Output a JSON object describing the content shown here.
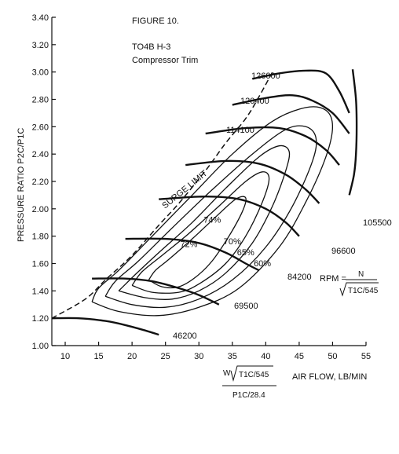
{
  "chart_data": {
    "type": "line",
    "title": "FIGURE 10.",
    "subtitle": [
      "TO4B H-3",
      "Compressor Trim"
    ],
    "ylabel": "PRESSURE RATIO  P2C/P1C",
    "xlabel": "AIR FLOW, LB/MIN",
    "xlabel_formula": {
      "top": "W",
      "sqrt": "T1C/545",
      "bottom": "P1C/28.4"
    },
    "xlim": [
      8,
      55
    ],
    "ylim": [
      1.0,
      3.4
    ],
    "xticks": [
      "10",
      "15",
      "20",
      "25",
      "30",
      "35",
      "40",
      "45",
      "50",
      "55"
    ],
    "yticks": [
      "1.00",
      "1.20",
      "1.40",
      "1.60",
      "1.80",
      "2.00",
      "2.20",
      "2.40",
      "2.60",
      "2.80",
      "3.00",
      "3.20",
      "3.40"
    ],
    "rpm_formula": {
      "prefix": "RPM =",
      "num": "N",
      "den": "T1C/545"
    },
    "surge_limit": {
      "label": "SURGE LIMIT",
      "points": [
        [
          8,
          1.2
        ],
        [
          13,
          1.34
        ],
        [
          16,
          1.48
        ],
        [
          20,
          1.66
        ],
        [
          24,
          1.88
        ],
        [
          27,
          2.04
        ],
        [
          31,
          2.28
        ],
        [
          34,
          2.48
        ],
        [
          37,
          2.66
        ],
        [
          39,
          2.82
        ],
        [
          41,
          3.0
        ]
      ]
    },
    "speed_lines": [
      {
        "label": "46200",
        "points": [
          [
            8,
            1.2
          ],
          [
            12,
            1.2
          ],
          [
            16,
            1.18
          ],
          [
            19,
            1.15
          ],
          [
            22,
            1.11
          ],
          [
            24,
            1.08
          ]
        ]
      },
      {
        "label": "69500",
        "points": [
          [
            14,
            1.49
          ],
          [
            19,
            1.49
          ],
          [
            23,
            1.47
          ],
          [
            27,
            1.42
          ],
          [
            30,
            1.37
          ],
          [
            33,
            1.3
          ]
        ]
      },
      {
        "label": "84200",
        "points": [
          [
            19,
            1.78
          ],
          [
            25,
            1.78
          ],
          [
            30,
            1.75
          ],
          [
            34,
            1.68
          ],
          [
            37,
            1.6
          ],
          [
            39,
            1.55
          ]
        ]
      },
      {
        "label": "96600",
        "points": [
          [
            24,
            2.07
          ],
          [
            31,
            2.09
          ],
          [
            36,
            2.07
          ],
          [
            40,
            2.0
          ],
          [
            43,
            1.9
          ],
          [
            45,
            1.8
          ]
        ]
      },
      {
        "label": "105500",
        "points": [
          [
            28,
            2.32
          ],
          [
            34,
            2.35
          ],
          [
            39,
            2.33
          ],
          [
            43,
            2.25
          ],
          [
            46,
            2.14
          ],
          [
            48,
            2.04
          ]
        ]
      },
      {
        "label": "114100",
        "points": [
          [
            31,
            2.55
          ],
          [
            37,
            2.59
          ],
          [
            42,
            2.59
          ],
          [
            46,
            2.53
          ],
          [
            49,
            2.43
          ],
          [
            51,
            2.32
          ]
        ]
      },
      {
        "label": "120400",
        "points": [
          [
            35,
            2.76
          ],
          [
            40,
            2.81
          ],
          [
            44,
            2.83
          ],
          [
            47,
            2.79
          ],
          [
            50,
            2.7
          ],
          [
            52.5,
            2.55
          ]
        ]
      },
      {
        "label": "126000",
        "points": [
          [
            38,
            2.95
          ],
          [
            42,
            2.99
          ],
          [
            46,
            3.01
          ],
          [
            49,
            2.99
          ],
          [
            51,
            2.86
          ],
          [
            52.5,
            2.7
          ]
        ]
      }
    ],
    "choke_line": {
      "points": [
        [
          53,
          3.02
        ],
        [
          53.5,
          2.8
        ],
        [
          53.6,
          2.6
        ],
        [
          53.5,
          2.4
        ],
        [
          53.2,
          2.25
        ],
        [
          52.5,
          2.1
        ]
      ]
    },
    "efficiency_islands": [
      {
        "label": "60%",
        "points": [
          [
            14,
            1.32
          ],
          [
            18,
            1.25
          ],
          [
            24,
            1.22
          ],
          [
            30,
            1.28
          ],
          [
            36,
            1.42
          ],
          [
            42,
            1.72
          ],
          [
            46,
            2.05
          ],
          [
            49,
            2.38
          ],
          [
            50,
            2.6
          ],
          [
            49,
            2.72
          ],
          [
            46,
            2.74
          ],
          [
            41,
            2.64
          ],
          [
            35,
            2.4
          ],
          [
            29,
            2.1
          ],
          [
            23,
            1.8
          ],
          [
            18,
            1.55
          ],
          [
            15,
            1.42
          ],
          [
            14,
            1.32
          ]
        ]
      },
      {
        "label": "65%",
        "points": [
          [
            16,
            1.36
          ],
          [
            20,
            1.3
          ],
          [
            25,
            1.28
          ],
          [
            30,
            1.34
          ],
          [
            35,
            1.48
          ],
          [
            40,
            1.72
          ],
          [
            44,
            2.02
          ],
          [
            47,
            2.35
          ],
          [
            47.5,
            2.52
          ],
          [
            46,
            2.6
          ],
          [
            43,
            2.58
          ],
          [
            38,
            2.4
          ],
          [
            32,
            2.14
          ],
          [
            26,
            1.86
          ],
          [
            21,
            1.62
          ],
          [
            17.5,
            1.47
          ],
          [
            16,
            1.36
          ]
        ]
      },
      {
        "label": "70%",
        "points": [
          [
            18,
            1.4
          ],
          [
            22,
            1.35
          ],
          [
            26,
            1.34
          ],
          [
            30,
            1.4
          ],
          [
            34,
            1.53
          ],
          [
            38,
            1.75
          ],
          [
            41,
            2.02
          ],
          [
            43,
            2.28
          ],
          [
            43.5,
            2.42
          ],
          [
            42,
            2.46
          ],
          [
            39,
            2.38
          ],
          [
            34,
            2.15
          ],
          [
            29,
            1.9
          ],
          [
            24,
            1.68
          ],
          [
            20.5,
            1.52
          ],
          [
            18,
            1.4
          ]
        ]
      },
      {
        "label": "72%",
        "points": [
          [
            20,
            1.44
          ],
          [
            23,
            1.39
          ],
          [
            27,
            1.39
          ],
          [
            30,
            1.45
          ],
          [
            34,
            1.6
          ],
          [
            37,
            1.8
          ],
          [
            39.5,
            2.05
          ],
          [
            40.5,
            2.22
          ],
          [
            39.5,
            2.27
          ],
          [
            37,
            2.2
          ],
          [
            33,
            2.02
          ],
          [
            28.5,
            1.82
          ],
          [
            24.5,
            1.66
          ],
          [
            21.5,
            1.54
          ],
          [
            20,
            1.44
          ]
        ]
      },
      {
        "label": "74%",
        "points": [
          [
            22.5,
            1.48
          ],
          [
            24.5,
            1.43
          ],
          [
            27,
            1.43
          ],
          [
            29.5,
            1.5
          ],
          [
            32,
            1.62
          ],
          [
            34.5,
            1.8
          ],
          [
            36.5,
            1.98
          ],
          [
            37,
            2.08
          ],
          [
            35.5,
            2.07
          ],
          [
            32.5,
            1.94
          ],
          [
            29,
            1.78
          ],
          [
            25.5,
            1.63
          ],
          [
            23.5,
            1.55
          ],
          [
            22.5,
            1.48
          ]
        ]
      }
    ],
    "grid": false,
    "legend": "none"
  }
}
